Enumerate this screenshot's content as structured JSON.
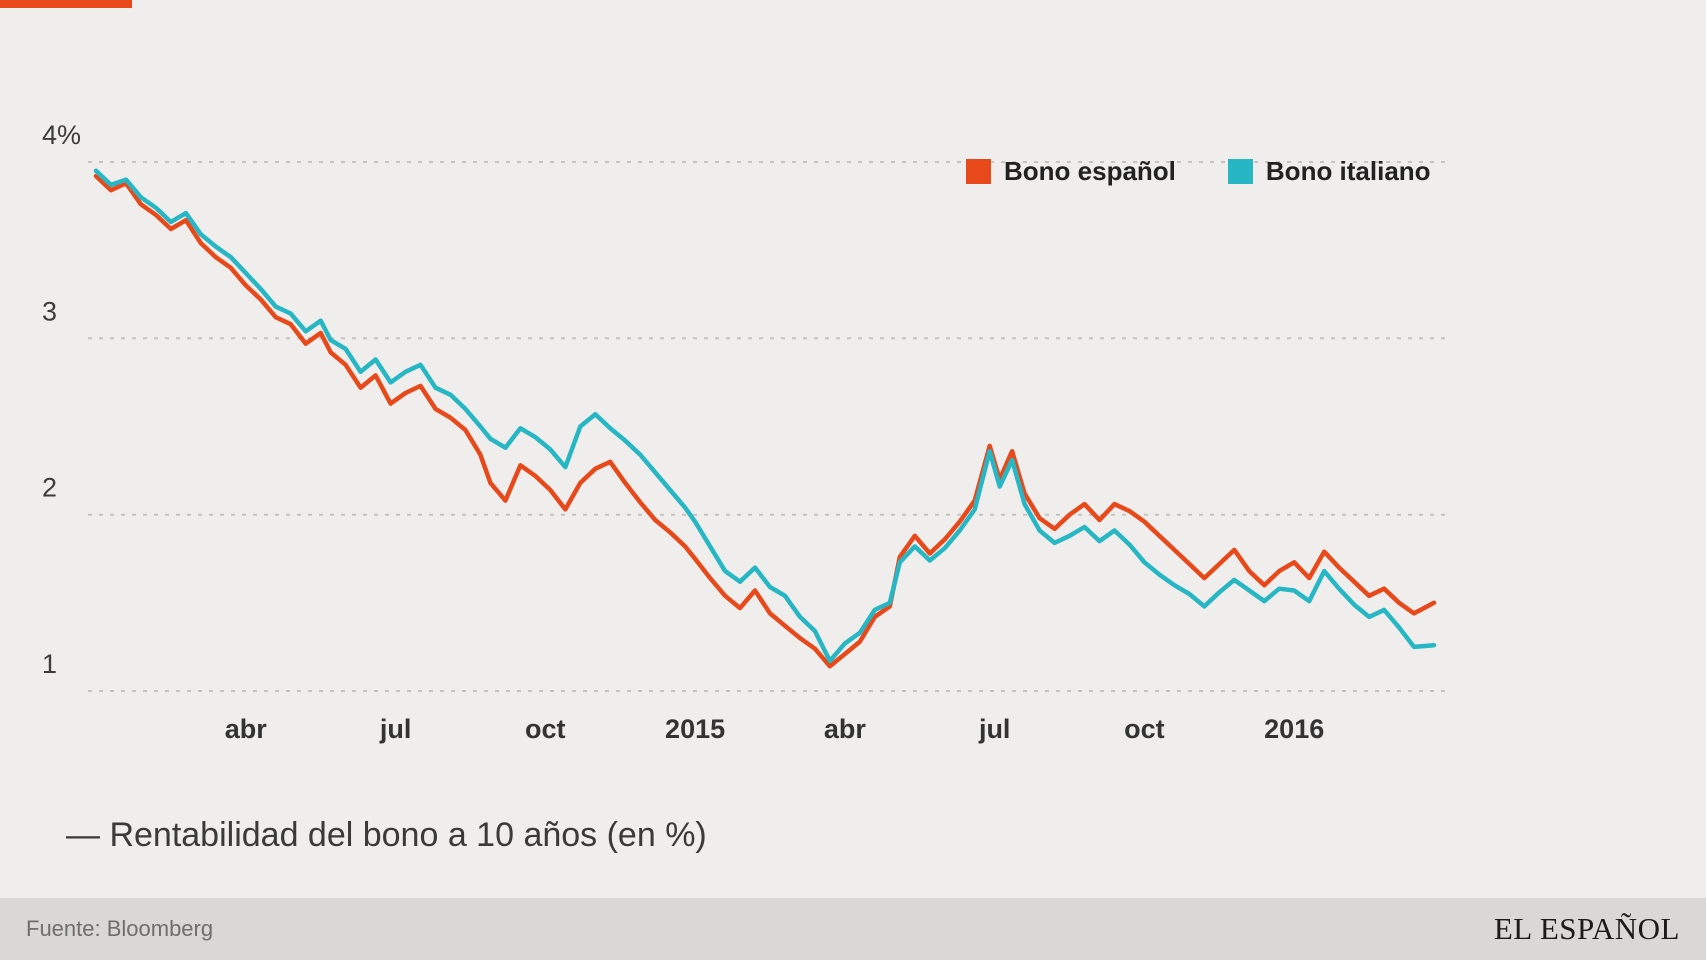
{
  "page": {
    "bg": "#efeeec",
    "accent_color": "#e8491b"
  },
  "legend": {
    "items": [
      {
        "label": "Bono español",
        "color": "#e8491b"
      },
      {
        "label": "Bono italiano",
        "color": "#27b6c4"
      }
    ]
  },
  "caption": {
    "full": "— Rentabilidad del bono a 10 años (en %)"
  },
  "footer": {
    "source": "Fuente: Bloomberg",
    "brand": "EL ESPAÑOL"
  },
  "chart_data": {
    "type": "line",
    "title": "Rentabilidad del bono a 10 años (en %)",
    "x_unit": "months_since_jan_2014",
    "x_range": [
      0,
      26.9
    ],
    "ylim": [
      0.85,
      4.2
    ],
    "grid": "dashed_horizontal",
    "legend_position": "top-right-inside",
    "y_ticks": [
      {
        "value": 4,
        "label": "4%"
      },
      {
        "value": 3,
        "label": "3"
      },
      {
        "value": 2,
        "label": "2"
      },
      {
        "value": 1,
        "label": "1"
      }
    ],
    "x_ticks": [
      {
        "t": 3,
        "label": "abr"
      },
      {
        "t": 6,
        "label": "jul"
      },
      {
        "t": 9,
        "label": "oct"
      },
      {
        "t": 12,
        "label": "2015"
      },
      {
        "t": 15,
        "label": "abr"
      },
      {
        "t": 18,
        "label": "jul"
      },
      {
        "t": 21,
        "label": "oct"
      },
      {
        "t": 24,
        "label": "2016"
      }
    ],
    "series": [
      {
        "name": "Bono español",
        "color": "#e8491b",
        "points": [
          [
            0,
            3.92
          ],
          [
            0.3,
            3.84
          ],
          [
            0.6,
            3.88
          ],
          [
            0.9,
            3.76
          ],
          [
            1.2,
            3.7
          ],
          [
            1.5,
            3.62
          ],
          [
            1.8,
            3.67
          ],
          [
            2.1,
            3.54
          ],
          [
            2.4,
            3.46
          ],
          [
            2.7,
            3.4
          ],
          [
            3,
            3.3
          ],
          [
            3.3,
            3.22
          ],
          [
            3.6,
            3.12
          ],
          [
            3.9,
            3.08
          ],
          [
            4.2,
            2.97
          ],
          [
            4.5,
            3.03
          ],
          [
            4.7,
            2.92
          ],
          [
            5,
            2.85
          ],
          [
            5.3,
            2.72
          ],
          [
            5.6,
            2.79
          ],
          [
            5.9,
            2.63
          ],
          [
            6.2,
            2.69
          ],
          [
            6.5,
            2.73
          ],
          [
            6.8,
            2.6
          ],
          [
            7.1,
            2.55
          ],
          [
            7.4,
            2.48
          ],
          [
            7.7,
            2.34
          ],
          [
            7.9,
            2.18
          ],
          [
            8.2,
            2.08
          ],
          [
            8.5,
            2.28
          ],
          [
            8.8,
            2.22
          ],
          [
            9.1,
            2.14
          ],
          [
            9.4,
            2.03
          ],
          [
            9.7,
            2.18
          ],
          [
            10,
            2.26
          ],
          [
            10.3,
            2.3
          ],
          [
            10.6,
            2.18
          ],
          [
            10.9,
            2.07
          ],
          [
            11.2,
            1.97
          ],
          [
            11.5,
            1.9
          ],
          [
            11.8,
            1.82
          ],
          [
            12,
            1.75
          ],
          [
            12.3,
            1.64
          ],
          [
            12.6,
            1.54
          ],
          [
            12.9,
            1.47
          ],
          [
            13.2,
            1.57
          ],
          [
            13.5,
            1.44
          ],
          [
            13.8,
            1.37
          ],
          [
            14.1,
            1.3
          ],
          [
            14.4,
            1.24
          ],
          [
            14.7,
            1.14
          ],
          [
            15,
            1.21
          ],
          [
            15.3,
            1.28
          ],
          [
            15.6,
            1.42
          ],
          [
            15.9,
            1.48
          ],
          [
            16.1,
            1.76
          ],
          [
            16.4,
            1.88
          ],
          [
            16.7,
            1.78
          ],
          [
            17,
            1.86
          ],
          [
            17.3,
            1.96
          ],
          [
            17.6,
            2.08
          ],
          [
            17.9,
            2.39
          ],
          [
            18.1,
            2.2
          ],
          [
            18.35,
            2.36
          ],
          [
            18.6,
            2.12
          ],
          [
            18.9,
            1.98
          ],
          [
            19.2,
            1.92
          ],
          [
            19.5,
            2.0
          ],
          [
            19.8,
            2.06
          ],
          [
            20.1,
            1.97
          ],
          [
            20.4,
            2.06
          ],
          [
            20.7,
            2.02
          ],
          [
            21,
            1.96
          ],
          [
            21.3,
            1.88
          ],
          [
            21.6,
            1.8
          ],
          [
            21.9,
            1.72
          ],
          [
            22.2,
            1.64
          ],
          [
            22.5,
            1.72
          ],
          [
            22.8,
            1.8
          ],
          [
            23.1,
            1.68
          ],
          [
            23.4,
            1.6
          ],
          [
            23.7,
            1.68
          ],
          [
            24,
            1.73
          ],
          [
            24.3,
            1.64
          ],
          [
            24.6,
            1.79
          ],
          [
            24.9,
            1.7
          ],
          [
            25.2,
            1.62
          ],
          [
            25.5,
            1.54
          ],
          [
            25.8,
            1.58
          ],
          [
            26.1,
            1.5
          ],
          [
            26.4,
            1.44
          ],
          [
            26.8,
            1.5
          ]
        ]
      },
      {
        "name": "Bono italiano",
        "color": "#27b6c4",
        "points": [
          [
            0,
            3.95
          ],
          [
            0.3,
            3.87
          ],
          [
            0.6,
            3.9
          ],
          [
            0.9,
            3.8
          ],
          [
            1.2,
            3.74
          ],
          [
            1.5,
            3.66
          ],
          [
            1.8,
            3.71
          ],
          [
            2.1,
            3.59
          ],
          [
            2.4,
            3.52
          ],
          [
            2.7,
            3.46
          ],
          [
            3,
            3.37
          ],
          [
            3.3,
            3.28
          ],
          [
            3.6,
            3.18
          ],
          [
            3.9,
            3.14
          ],
          [
            4.2,
            3.04
          ],
          [
            4.5,
            3.1
          ],
          [
            4.7,
            2.99
          ],
          [
            5,
            2.94
          ],
          [
            5.3,
            2.81
          ],
          [
            5.6,
            2.88
          ],
          [
            5.9,
            2.75
          ],
          [
            6.2,
            2.81
          ],
          [
            6.5,
            2.85
          ],
          [
            6.8,
            2.72
          ],
          [
            7.1,
            2.68
          ],
          [
            7.4,
            2.6
          ],
          [
            7.7,
            2.5
          ],
          [
            7.9,
            2.43
          ],
          [
            8.2,
            2.38
          ],
          [
            8.5,
            2.49
          ],
          [
            8.8,
            2.44
          ],
          [
            9.1,
            2.37
          ],
          [
            9.4,
            2.27
          ],
          [
            9.7,
            2.5
          ],
          [
            10,
            2.57
          ],
          [
            10.3,
            2.49
          ],
          [
            10.6,
            2.42
          ],
          [
            10.9,
            2.34
          ],
          [
            11.2,
            2.24
          ],
          [
            11.5,
            2.14
          ],
          [
            11.8,
            2.04
          ],
          [
            12,
            1.96
          ],
          [
            12.3,
            1.82
          ],
          [
            12.6,
            1.68
          ],
          [
            12.9,
            1.62
          ],
          [
            13.2,
            1.7
          ],
          [
            13.5,
            1.59
          ],
          [
            13.8,
            1.54
          ],
          [
            14.1,
            1.42
          ],
          [
            14.4,
            1.34
          ],
          [
            14.7,
            1.17
          ],
          [
            15,
            1.27
          ],
          [
            15.3,
            1.33
          ],
          [
            15.6,
            1.46
          ],
          [
            15.9,
            1.5
          ],
          [
            16.1,
            1.73
          ],
          [
            16.4,
            1.82
          ],
          [
            16.7,
            1.74
          ],
          [
            17,
            1.81
          ],
          [
            17.3,
            1.91
          ],
          [
            17.6,
            2.03
          ],
          [
            17.9,
            2.36
          ],
          [
            18.1,
            2.16
          ],
          [
            18.35,
            2.31
          ],
          [
            18.6,
            2.06
          ],
          [
            18.9,
            1.91
          ],
          [
            19.2,
            1.84
          ],
          [
            19.5,
            1.88
          ],
          [
            19.8,
            1.93
          ],
          [
            20.1,
            1.85
          ],
          [
            20.4,
            1.91
          ],
          [
            20.7,
            1.83
          ],
          [
            21,
            1.73
          ],
          [
            21.3,
            1.66
          ],
          [
            21.6,
            1.6
          ],
          [
            21.9,
            1.55
          ],
          [
            22.2,
            1.48
          ],
          [
            22.5,
            1.56
          ],
          [
            22.8,
            1.63
          ],
          [
            23.1,
            1.57
          ],
          [
            23.4,
            1.51
          ],
          [
            23.7,
            1.58
          ],
          [
            24,
            1.57
          ],
          [
            24.3,
            1.51
          ],
          [
            24.6,
            1.68
          ],
          [
            24.9,
            1.58
          ],
          [
            25.2,
            1.49
          ],
          [
            25.5,
            1.42
          ],
          [
            25.8,
            1.46
          ],
          [
            26.1,
            1.36
          ],
          [
            26.4,
            1.25
          ],
          [
            26.8,
            1.26
          ]
        ]
      }
    ]
  }
}
